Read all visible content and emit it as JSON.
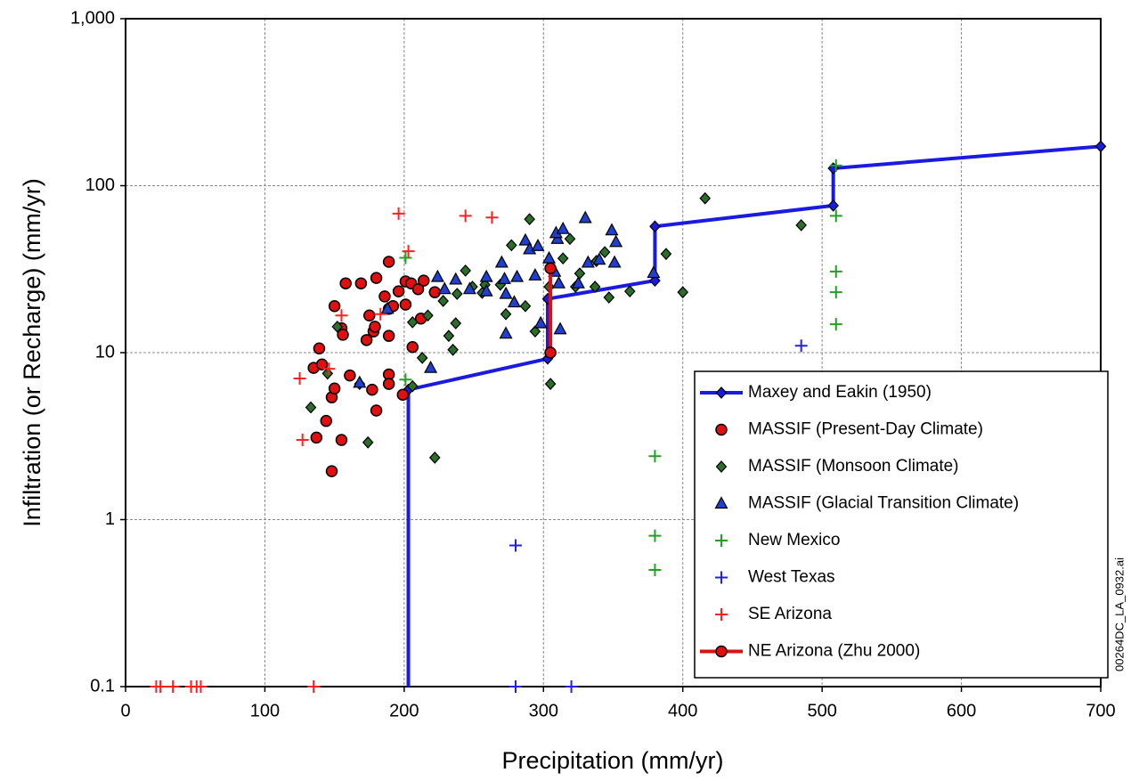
{
  "chart_data": {
    "type": "scatter",
    "xlabel": "Precipitation (mm/yr)",
    "ylabel": "Infiltration (or Recharge) (mm/yr)",
    "annotation": "00264DC_LA_0932.ai",
    "xlim": [
      0,
      700
    ],
    "xticks": [
      0,
      100,
      200,
      300,
      400,
      500,
      600,
      700
    ],
    "ylim": [
      0.1,
      1000
    ],
    "yticks": [
      0.1,
      1,
      10,
      100,
      {
        "value": 1000,
        "label": "1,000"
      }
    ],
    "yscale": "log",
    "grid": true,
    "legend": "lower right",
    "series": [
      {
        "name": "Maxey and Eakin (1950)",
        "color": "#1a1ae0",
        "line": true,
        "marker": "diamond",
        "x": [
          203,
          203,
          303,
          303,
          380,
          380,
          508,
          508,
          700
        ],
        "values": [
          0.1,
          6,
          9.2,
          21,
          27,
          57,
          76,
          127,
          172
        ]
      },
      {
        "name": "MASSIF (Present-Day Climate)",
        "color": "#e01010",
        "marker": "circle",
        "x": [
          148,
          155,
          144,
          137,
          148,
          150,
          135,
          141,
          139,
          150,
          158,
          169,
          180,
          189,
          155,
          156,
          173,
          175,
          178,
          179,
          186,
          189,
          192,
          189,
          196,
          201,
          205,
          201,
          210,
          214,
          222,
          212,
          206,
          189,
          189,
          199,
          161,
          177,
          180
        ],
        "values": [
          1.95,
          3.0,
          3.9,
          3.1,
          5.4,
          6.1,
          8.1,
          8.5,
          10.6,
          19,
          26,
          26,
          28,
          35,
          14,
          12.8,
          11.9,
          16.7,
          13.4,
          14.3,
          21.7,
          18.3,
          19,
          12.6,
          23.3,
          26.7,
          26,
          19.4,
          24,
          27,
          23,
          16,
          10.8,
          7.4,
          6.5,
          5.6,
          7.3,
          6.0,
          4.5
        ]
      },
      {
        "name": "MASSIF (Monsoon Climate)",
        "color": "#2a6e2a",
        "marker": "diamond",
        "x": [
          133,
          174,
          222,
          145,
          168,
          152,
          206,
          206,
          213,
          217,
          232,
          235,
          237,
          228,
          238,
          244,
          249,
          258,
          256,
          269,
          277,
          290,
          287,
          294,
          273,
          305,
          304,
          314,
          319,
          323,
          326,
          338,
          344,
          337,
          347,
          362,
          388,
          400,
          416,
          485
        ],
        "values": [
          4.7,
          2.9,
          2.35,
          7.5,
          6.5,
          14.3,
          6.3,
          15.2,
          9.3,
          16.7,
          12.6,
          10.4,
          15,
          20.4,
          22.5,
          31,
          24.8,
          25.5,
          22.8,
          25.5,
          44,
          63,
          19,
          13.4,
          17,
          6.5,
          24.8,
          36.7,
          48,
          24.8,
          29.8,
          35.4,
          40,
          24.8,
          21.4,
          23.3,
          39,
          23,
          84,
          58
        ]
      },
      {
        "name": "MASSIF (Glacial Transition Climate)",
        "color": "#1f3fd0",
        "marker": "triangle",
        "x": [
          168,
          188,
          219,
          224,
          229,
          237,
          247,
          259,
          259,
          272,
          270,
          273,
          279,
          281,
          287,
          290,
          296,
          294,
          298,
          273,
          304,
          308,
          311,
          310,
          309,
          314,
          312,
          325,
          332,
          330,
          340,
          349,
          352,
          351,
          379
        ],
        "values": [
          6.6,
          18.3,
          8.1,
          28.4,
          24,
          27.4,
          24,
          28.4,
          23.3,
          27.6,
          34.6,
          22.5,
          20,
          28.4,
          47,
          41.6,
          43.5,
          29,
          15,
          13,
          36.7,
          30.5,
          26,
          48,
          52,
          55,
          13.8,
          26,
          34.6,
          64,
          36,
          54,
          46,
          34.6,
          30
        ]
      },
      {
        "name": "New Mexico",
        "color": "#22a022",
        "marker": "plus",
        "x": [
          201,
          201,
          380,
          380,
          380,
          510,
          510,
          510,
          510,
          510
        ],
        "values": [
          37,
          6.9,
          2.4,
          0.8,
          0.5,
          132,
          66,
          30.6,
          23,
          14.8
        ]
      },
      {
        "name": "West Texas",
        "color": "#2020e8",
        "marker": "plus",
        "x": [
          485,
          280,
          280,
          320
        ],
        "values": [
          11,
          0.7,
          0.1,
          0.1
        ]
      },
      {
        "name": "SE Arizona",
        "color": "#ff2020",
        "marker": "plus",
        "x": [
          196,
          244,
          263,
          203,
          125,
          127,
          146,
          155,
          183,
          22,
          25,
          34,
          47,
          51,
          54,
          135
        ],
        "values": [
          68,
          66,
          64.5,
          40.5,
          7,
          3,
          8,
          16.7,
          17,
          0.1,
          0.1,
          0.1,
          0.1,
          0.1,
          0.1,
          0.1
        ]
      },
      {
        "name": "NE Arizona (Zhu 2000)",
        "color": "#e01010",
        "line": true,
        "marker": "circle",
        "x": [
          305,
          305
        ],
        "values": [
          10,
          32
        ]
      }
    ]
  }
}
